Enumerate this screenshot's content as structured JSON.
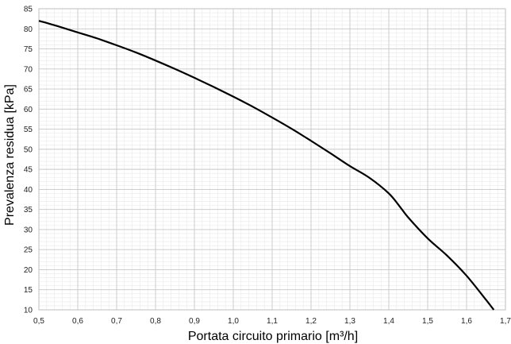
{
  "chart_data": {
    "type": "line",
    "title": "",
    "xlabel": "Portata circuito primario [m³/h]",
    "ylabel": "Prevalenza residua [kPa]",
    "xlim": [
      0.5,
      1.7
    ],
    "ylim": [
      10,
      85
    ],
    "x_ticks": [
      "0,5",
      "0,6",
      "0,7",
      "0,8",
      "0,9",
      "1,0",
      "1,1",
      "1,2",
      "1,3",
      "1,4",
      "1,5",
      "1,6",
      "1,7"
    ],
    "y_ticks": [
      "10",
      "15",
      "20",
      "25",
      "30",
      "35",
      "40",
      "45",
      "50",
      "55",
      "60",
      "65",
      "70",
      "75",
      "80",
      "85"
    ],
    "grid": true,
    "legend": "none",
    "series": [
      {
        "color": "#000000",
        "points": [
          [
            0.5,
            82.0
          ],
          [
            0.55,
            80.6
          ],
          [
            0.6,
            79.1
          ],
          [
            0.65,
            77.6
          ],
          [
            0.7,
            75.9
          ],
          [
            0.75,
            74.1
          ],
          [
            0.8,
            72.1
          ],
          [
            0.85,
            70.0
          ],
          [
            0.9,
            67.8
          ],
          [
            0.95,
            65.5
          ],
          [
            1.0,
            63.1
          ],
          [
            1.05,
            60.6
          ],
          [
            1.1,
            57.9
          ],
          [
            1.15,
            55.1
          ],
          [
            1.2,
            52.1
          ],
          [
            1.25,
            49.0
          ],
          [
            1.3,
            45.8
          ],
          [
            1.35,
            42.9
          ],
          [
            1.4,
            39.0
          ],
          [
            1.43,
            35.5
          ],
          [
            1.45,
            33.0
          ],
          [
            1.5,
            27.8
          ],
          [
            1.55,
            23.5
          ],
          [
            1.6,
            18.5
          ],
          [
            1.65,
            12.5
          ],
          [
            1.67,
            10.0
          ]
        ]
      }
    ]
  }
}
